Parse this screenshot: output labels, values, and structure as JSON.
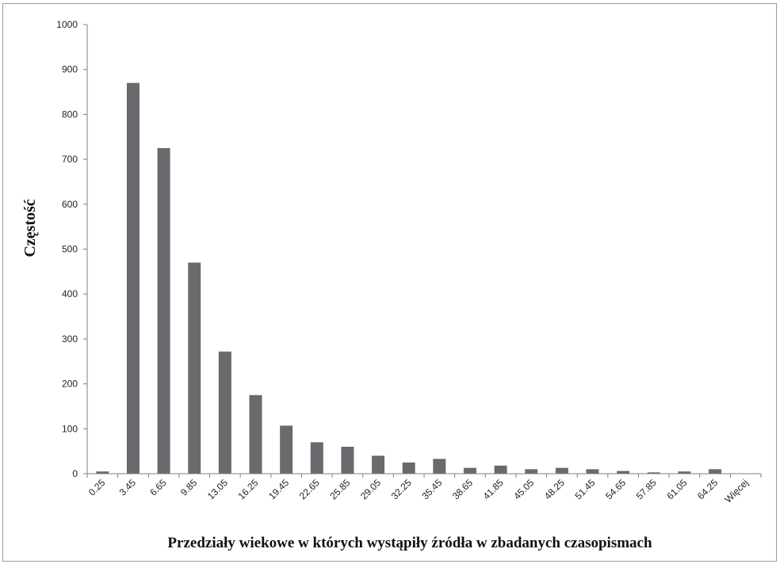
{
  "chart_data": {
    "type": "bar",
    "title": "",
    "xlabel": "Przedziały wiekowe w których wystąpiły źródła w zbadanych czasopismach",
    "ylabel": "Częstość",
    "ylim": [
      0,
      1000
    ],
    "yticks": [
      "0",
      "100",
      "200",
      "300",
      "400",
      "500",
      "600",
      "700",
      "800",
      "900",
      "1000"
    ],
    "categories": [
      "0.25",
      "3.45",
      "6.65",
      "9.85",
      "13.05",
      "16.25",
      "19.45",
      "22.65",
      "25.85",
      "29.05",
      "32.25",
      "35.45",
      "38.65",
      "41.85",
      "45.05",
      "48.25",
      "51.45",
      "54.65",
      "57.85",
      "61.05",
      "64.25",
      "Więcej"
    ],
    "values": [
      5,
      870,
      725,
      470,
      272,
      175,
      107,
      70,
      60,
      40,
      25,
      33,
      13,
      18,
      10,
      13,
      10,
      6,
      3,
      5,
      10,
      0
    ],
    "grid": false,
    "legend": "none",
    "bar_color": "#6a6a6e",
    "axis_color": "#808080"
  }
}
